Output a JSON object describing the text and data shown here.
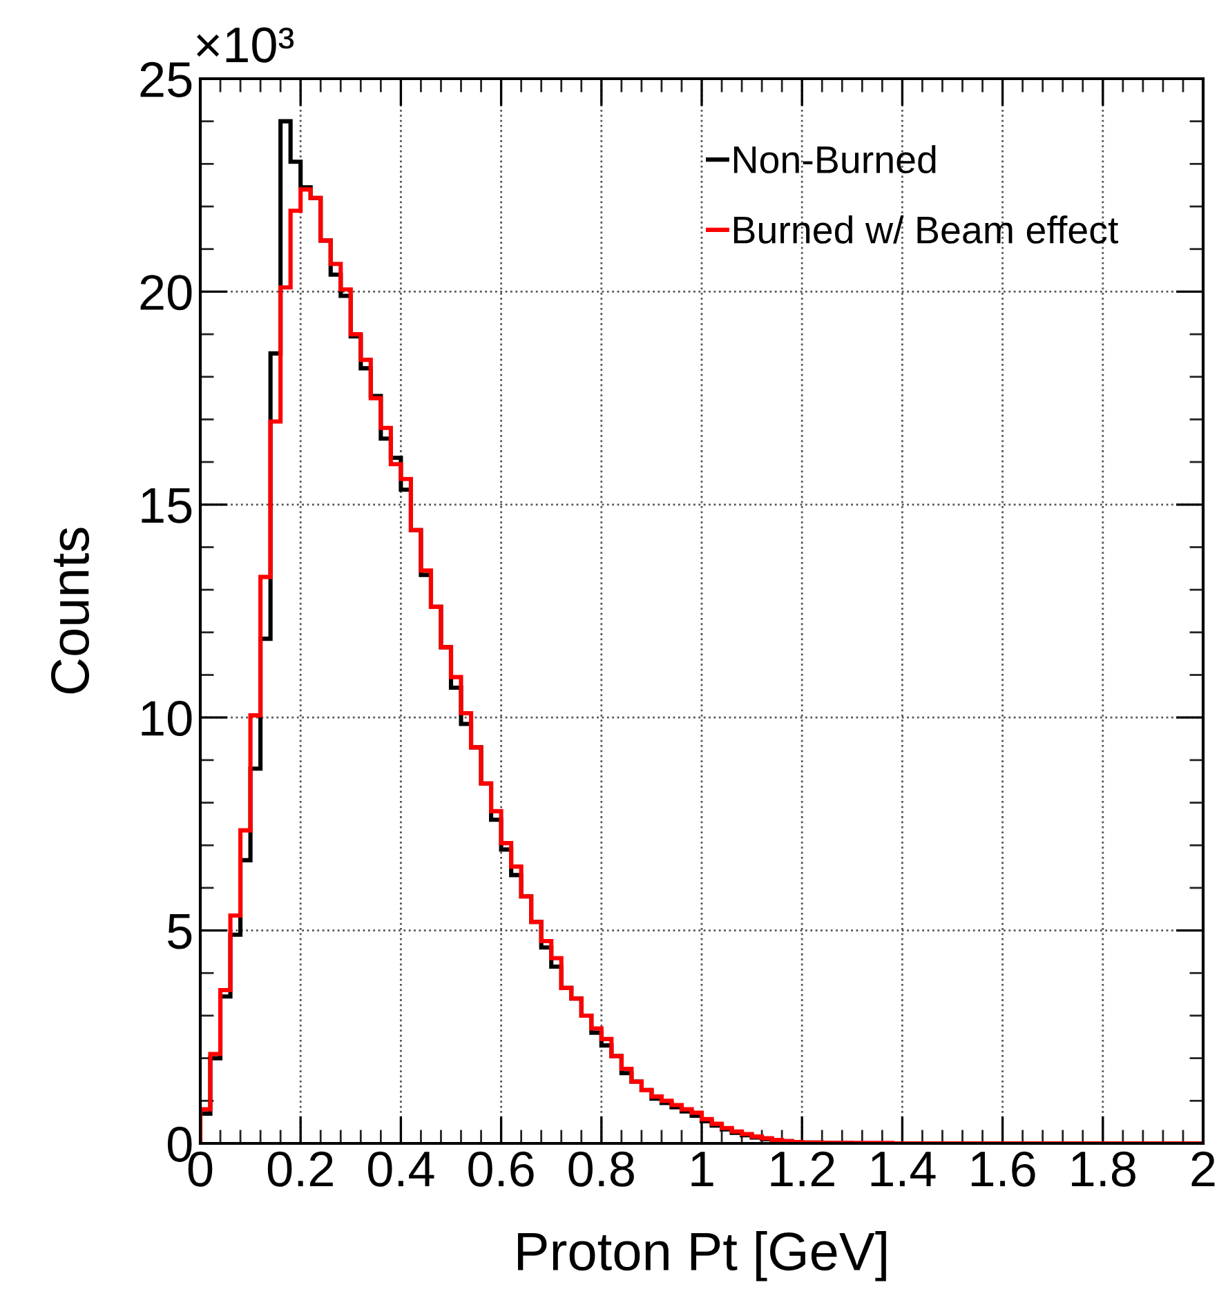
{
  "chart_data": {
    "type": "histogram",
    "xlabel": "Proton Pt [GeV]",
    "ylabel": "Counts",
    "annotations": [
      "×10³"
    ],
    "bins": [
      0,
      0.02,
      0.04,
      0.06,
      0.08,
      0.1,
      0.12,
      0.14,
      0.16,
      0.18,
      0.2,
      0.22,
      0.24,
      0.26,
      0.28,
      0.3,
      0.32,
      0.34,
      0.36,
      0.38,
      0.4,
      0.42,
      0.44,
      0.46,
      0.48,
      0.5,
      0.52,
      0.54,
      0.56,
      0.58,
      0.6,
      0.62,
      0.64,
      0.66,
      0.68,
      0.7,
      0.72,
      0.74,
      0.76,
      0.78,
      0.8,
      0.82,
      0.84,
      0.86,
      0.88,
      0.9,
      0.92,
      0.94,
      0.96,
      0.98,
      1,
      1.02,
      1.04,
      1.06,
      1.08,
      1.1,
      1.12,
      1.14,
      1.16,
      1.18,
      1.2,
      1.22,
      1.24,
      1.26,
      1.28,
      1.3,
      1.32,
      1.34,
      1.36,
      1.38,
      1.4,
      1.42,
      1.44,
      1.46,
      1.48,
      1.5,
      1.52,
      1.54,
      1.56,
      1.58,
      1.6,
      1.62,
      1.64,
      1.66,
      1.68,
      1.7,
      1.72,
      1.74,
      1.76,
      1.78,
      1.8,
      1.82,
      1.84,
      1.86,
      1.88,
      1.9,
      1.92,
      1.94,
      1.96,
      1.98,
      2
    ],
    "series": [
      {
        "name": "Non-Burned",
        "color": "#000000",
        "values": [
          0.7,
          2.0,
          3.45,
          4.9,
          6.65,
          8.8,
          11.85,
          18.55,
          24.0,
          23.05,
          22.45,
          22.2,
          21.2,
          20.4,
          19.9,
          18.95,
          18.2,
          17.55,
          16.55,
          16.1,
          15.35,
          14.4,
          13.35,
          12.6,
          11.65,
          10.7,
          9.85,
          9.3,
          8.45,
          7.6,
          6.9,
          6.3,
          5.8,
          5.2,
          4.6,
          4.15,
          3.65,
          3.4,
          3.0,
          2.6,
          2.3,
          2.05,
          1.65,
          1.45,
          1.25,
          1.05,
          0.95,
          0.85,
          0.75,
          0.65,
          0.52,
          0.42,
          0.33,
          0.25,
          0.19,
          0.14,
          0.1,
          0.07,
          0.05,
          0.03,
          0.02,
          0.02,
          0.01,
          0.01,
          0.01,
          0,
          0,
          0,
          0,
          0,
          0,
          0,
          0,
          0,
          0,
          0,
          0,
          0,
          0,
          0,
          0,
          0,
          0,
          0,
          0,
          0,
          0,
          0,
          0,
          0,
          0,
          0,
          0,
          0,
          0,
          0,
          0,
          0,
          0,
          0
        ]
      },
      {
        "name": "Burned w/ Beam effect",
        "color": "#ff0000",
        "values": [
          0.8,
          2.1,
          3.6,
          5.35,
          7.35,
          10.05,
          13.3,
          16.95,
          20.1,
          21.9,
          22.4,
          22.2,
          21.2,
          20.65,
          20.05,
          19.0,
          18.4,
          17.5,
          16.8,
          15.95,
          15.6,
          14.4,
          13.45,
          12.6,
          11.65,
          10.95,
          10.1,
          9.3,
          8.45,
          7.8,
          7.05,
          6.5,
          5.8,
          5.2,
          4.75,
          4.35,
          3.65,
          3.4,
          3.0,
          2.7,
          2.45,
          2.05,
          1.75,
          1.45,
          1.25,
          1.1,
          1.0,
          0.9,
          0.8,
          0.72,
          0.57,
          0.46,
          0.36,
          0.28,
          0.22,
          0.16,
          0.12,
          0.08,
          0.05,
          0.03,
          0.02,
          0.02,
          0.01,
          0.01,
          0.01,
          0.01,
          0.01,
          0.01,
          0.01,
          0,
          0,
          0,
          0,
          0,
          0,
          0,
          0,
          0,
          0,
          0,
          0,
          0,
          0,
          0,
          0,
          0,
          0,
          0,
          0,
          0,
          0,
          0,
          0,
          0,
          0,
          0,
          0,
          0,
          0,
          0
        ]
      }
    ],
    "xlim": [
      0,
      2
    ],
    "xticks": [
      0,
      0.2,
      0.4,
      0.6,
      0.8,
      1,
      1.2,
      1.4,
      1.6,
      1.8,
      2
    ],
    "ylim": [
      0,
      25
    ],
    "yticks": [
      0,
      5,
      10,
      15,
      20,
      25
    ],
    "grid": true,
    "legend": "top right",
    "line_style": "solid"
  }
}
